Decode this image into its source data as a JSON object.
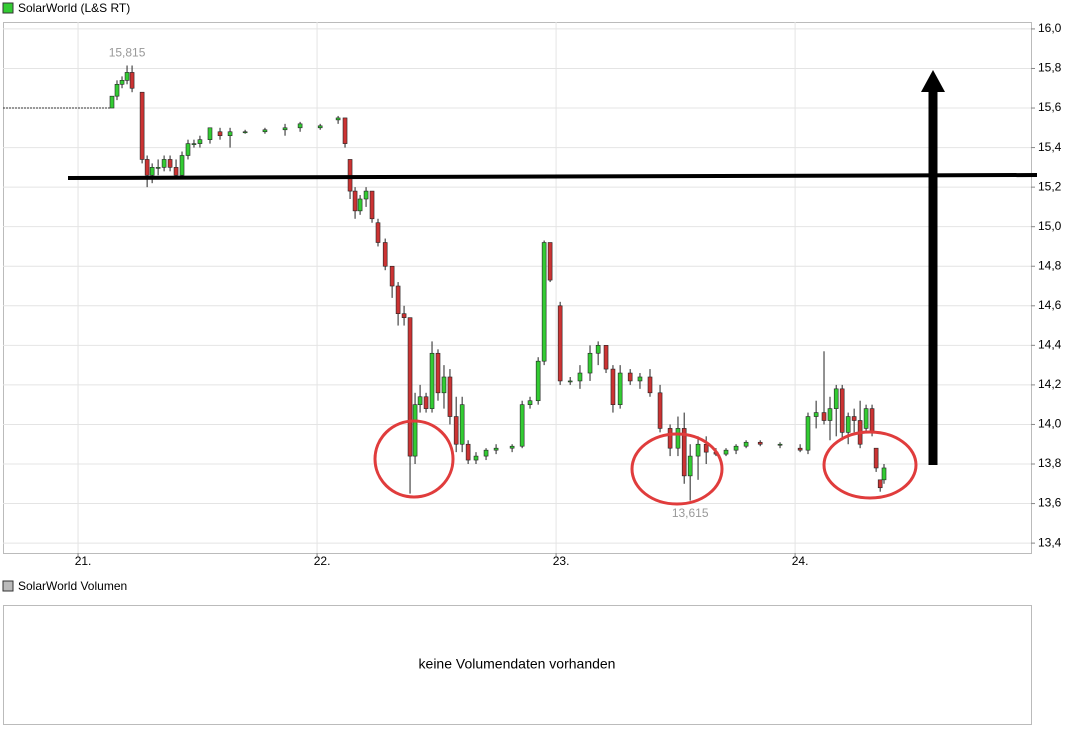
{
  "chart_data": {
    "type": "candlestick",
    "title": "SolarWorld (L&S RT)",
    "up_color": "#33cc33",
    "down_color": "#cc3333",
    "max_label": "15,815",
    "min_label": "13,615",
    "xlim": [
      20.686,
      24.987
    ],
    "ylim": [
      13.35,
      16.035
    ],
    "grid": true,
    "xticks": [
      {
        "value": 21,
        "label": "21."
      },
      {
        "value": 22,
        "label": "22."
      },
      {
        "value": 23,
        "label": "23."
      },
      {
        "value": 24,
        "label": "24."
      }
    ],
    "yticks": [
      {
        "value": 13.4,
        "label": "13,4"
      },
      {
        "value": 13.6,
        "label": "13,6"
      },
      {
        "value": 13.8,
        "label": "13,8"
      },
      {
        "value": 14.0,
        "label": "14,0"
      },
      {
        "value": 14.2,
        "label": "14,2"
      },
      {
        "value": 14.4,
        "label": "14,4"
      },
      {
        "value": 14.6,
        "label": "14,6"
      },
      {
        "value": 14.8,
        "label": "14,8"
      },
      {
        "value": 15.0,
        "label": "15,0"
      },
      {
        "value": 15.2,
        "label": "15,2"
      },
      {
        "value": 15.4,
        "label": "15,4"
      },
      {
        "value": 15.6,
        "label": "15,6"
      },
      {
        "value": 15.8,
        "label": "15,8"
      },
      {
        "value": 16.0,
        "label": "16,0"
      }
    ],
    "x": [
      21.142,
      21.163,
      21.184,
      21.205,
      21.226,
      21.268,
      21.289,
      21.31,
      21.335,
      21.36,
      21.385,
      21.41,
      21.435,
      21.46,
      21.485,
      21.51,
      21.552,
      21.594,
      21.636,
      21.699,
      21.782,
      21.866,
      21.929,
      22.013,
      22.088,
      22.117,
      22.138,
      22.159,
      22.18,
      22.205,
      22.23,
      22.255,
      22.285,
      22.314,
      22.339,
      22.364,
      22.389,
      22.41,
      22.431,
      22.456,
      22.481,
      22.506,
      22.531,
      22.556,
      22.582,
      22.607,
      22.632,
      22.665,
      22.707,
      22.749,
      22.816,
      22.858,
      22.891,
      22.925,
      22.95,
      22.975,
      23.017,
      23.059,
      23.1,
      23.142,
      23.176,
      23.209,
      23.238,
      23.268,
      23.31,
      23.351,
      23.393,
      23.435,
      23.477,
      23.51,
      23.536,
      23.561,
      23.594,
      23.628,
      23.669,
      23.711,
      23.753,
      23.795,
      23.854,
      23.937,
      24.021,
      24.054,
      24.088,
      24.121,
      24.146,
      24.172,
      24.197,
      24.222,
      24.247,
      24.272,
      24.297,
      24.322,
      24.339,
      24.356,
      24.372
    ],
    "open": [
      15.6,
      15.66,
      15.72,
      15.74,
      15.78,
      15.68,
      15.34,
      15.26,
      15.3,
      15.3,
      15.34,
      15.3,
      15.26,
      15.36,
      15.42,
      15.42,
      15.44,
      15.48,
      15.46,
      15.48,
      15.48,
      15.49,
      15.5,
      15.5,
      15.54,
      15.55,
      15.34,
      15.18,
      15.08,
      15.14,
      15.18,
      15.02,
      14.92,
      14.8,
      14.7,
      14.56,
      14.54,
      13.84,
      14.1,
      14.14,
      14.08,
      14.36,
      14.16,
      14.24,
      14.04,
      13.9,
      13.9,
      13.82,
      13.84,
      13.87,
      13.88,
      13.89,
      14.1,
      14.12,
      14.32,
      14.92,
      14.6,
      14.22,
      14.22,
      14.26,
      14.36,
      14.4,
      14.28,
      14.1,
      14.26,
      14.22,
      14.24,
      14.16,
      13.98,
      13.88,
      13.98,
      13.74,
      13.84,
      13.9,
      13.86,
      13.85,
      13.87,
      13.89,
      13.91,
      13.9,
      13.88,
      13.87,
      14.04,
      14.06,
      14.02,
      14.08,
      14.18,
      13.96,
      14.04,
      14.02,
      13.98,
      14.08,
      13.88,
      13.72,
      13.72
    ],
    "high": [
      15.66,
      15.74,
      15.76,
      15.815,
      15.815,
      15.68,
      15.36,
      15.32,
      15.34,
      15.36,
      15.36,
      15.34,
      15.38,
      15.44,
      15.44,
      15.46,
      15.5,
      15.5,
      15.5,
      15.49,
      15.5,
      15.52,
      15.53,
      15.52,
      15.56,
      15.55,
      15.34,
      15.2,
      15.16,
      15.2,
      15.18,
      15.04,
      14.94,
      14.8,
      14.72,
      14.6,
      14.54,
      14.16,
      14.2,
      14.16,
      14.42,
      14.38,
      14.3,
      14.28,
      14.14,
      14.14,
      13.92,
      13.86,
      13.88,
      13.9,
      13.9,
      14.12,
      14.14,
      14.34,
      14.93,
      14.92,
      14.62,
      14.24,
      14.3,
      14.4,
      14.42,
      14.4,
      14.3,
      14.3,
      14.28,
      14.26,
      14.28,
      14.2,
      14.0,
      14.04,
      14.06,
      13.9,
      13.94,
      13.94,
      13.88,
      13.88,
      13.9,
      13.92,
      13.92,
      13.91,
      13.9,
      14.06,
      14.12,
      14.37,
      14.14,
      14.2,
      14.2,
      14.06,
      14.08,
      14.12,
      14.1,
      14.1,
      13.88,
      13.72,
      13.8
    ],
    "low": [
      15.6,
      15.64,
      15.7,
      15.72,
      15.68,
      15.32,
      15.2,
      15.22,
      15.26,
      15.28,
      15.28,
      15.24,
      15.24,
      15.34,
      15.4,
      15.4,
      15.42,
      15.44,
      15.4,
      15.47,
      15.47,
      15.46,
      15.48,
      15.49,
      15.52,
      15.4,
      15.14,
      15.04,
      15.06,
      15.1,
      15.02,
      14.9,
      14.78,
      14.64,
      14.5,
      14.5,
      13.65,
      13.8,
      14.06,
      14.06,
      14.06,
      14.12,
      14.08,
      14.0,
      13.86,
      13.86,
      13.8,
      13.8,
      13.82,
      13.85,
      13.86,
      13.88,
      14.08,
      14.1,
      14.3,
      14.72,
      14.2,
      14.2,
      14.18,
      14.22,
      14.3,
      14.26,
      14.06,
      14.08,
      14.2,
      14.18,
      14.14,
      13.96,
      13.84,
      13.84,
      13.7,
      13.615,
      13.72,
      13.8,
      13.84,
      13.84,
      13.85,
      13.88,
      13.89,
      13.88,
      13.86,
      13.85,
      13.98,
      14.0,
      13.92,
      13.94,
      13.92,
      13.9,
      13.96,
      13.88,
      13.96,
      13.94,
      13.76,
      13.66,
      13.7
    ],
    "close": [
      15.66,
      15.72,
      15.74,
      15.78,
      15.7,
      15.34,
      15.26,
      15.3,
      15.3,
      15.34,
      15.3,
      15.26,
      15.36,
      15.42,
      15.42,
      15.44,
      15.5,
      15.46,
      15.48,
      15.48,
      15.49,
      15.5,
      15.52,
      15.51,
      15.55,
      15.42,
      15.18,
      15.08,
      15.14,
      15.18,
      15.04,
      14.92,
      14.8,
      14.7,
      14.56,
      14.54,
      13.84,
      14.1,
      14.14,
      14.08,
      14.36,
      14.16,
      14.24,
      14.04,
      13.9,
      14.1,
      13.82,
      13.84,
      13.87,
      13.88,
      13.89,
      14.1,
      14.12,
      14.32,
      14.92,
      14.73,
      14.22,
      14.22,
      14.26,
      14.36,
      14.4,
      14.28,
      14.1,
      14.26,
      14.22,
      14.24,
      14.16,
      13.98,
      13.88,
      13.98,
      13.74,
      13.84,
      13.9,
      13.86,
      13.85,
      13.87,
      13.89,
      13.91,
      13.9,
      13.9,
      13.87,
      14.04,
      14.06,
      14.02,
      14.08,
      14.18,
      13.96,
      14.04,
      14.02,
      13.9,
      14.08,
      13.96,
      13.78,
      13.68,
      13.78
    ]
  },
  "volume_panel": {
    "title": "SolarWorld Volumen",
    "message": "keine Volumendaten vorhanden"
  }
}
